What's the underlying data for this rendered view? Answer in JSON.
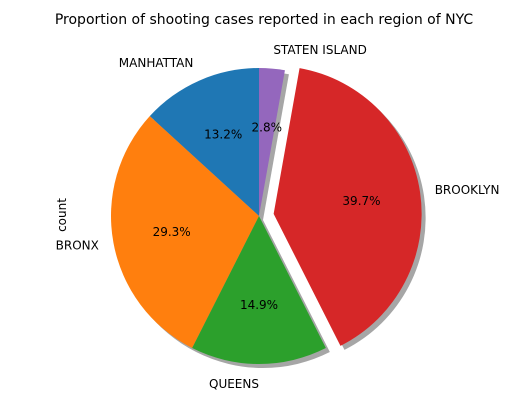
{
  "chart_data": {
    "type": "pie",
    "title": "Proportion of shooting cases reported in each region of NYC",
    "ylabel": "count",
    "start_angle_deg": 90,
    "direction": "counterclockwise",
    "shadow": true,
    "autopct_format": "{:.1f}%",
    "slices": [
      {
        "label": "MANHATTAN",
        "value": 13.2,
        "pct_label": "13.2%",
        "color": "#1f77b4",
        "explode": 0
      },
      {
        "label": "BRONX",
        "value": 29.3,
        "pct_label": "29.3%",
        "color": "#ff7f0e",
        "explode": 0
      },
      {
        "label": "QUEENS",
        "value": 14.9,
        "pct_label": "14.9%",
        "color": "#2ca02c",
        "explode": 0
      },
      {
        "label": "BROOKLYN",
        "value": 39.7,
        "pct_label": "39.7%",
        "color": "#d62728",
        "explode": 0.1
      },
      {
        "label": "STATEN ISLAND",
        "value": 2.8,
        "pct_label": "2.8%",
        "color": "#9467bd",
        "explode": 0
      }
    ]
  }
}
